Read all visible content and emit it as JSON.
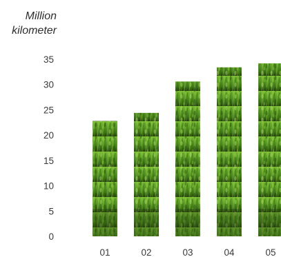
{
  "chart_data": {
    "type": "bar",
    "title": "",
    "ylabel": [
      "Million",
      "kilometer"
    ],
    "xlabel": "",
    "categories": [
      "01",
      "02",
      "03",
      "04",
      "05"
    ],
    "values": [
      22.8,
      24.4,
      30.6,
      33.4,
      34.2
    ],
    "ylim": [
      0,
      35
    ],
    "yticks": [
      0,
      5,
      10,
      15,
      20,
      25,
      30,
      35
    ],
    "grid": false,
    "legend": "none",
    "bar_fill": "green grass texture",
    "colors": {
      "grass_dark": "#1f3a0c",
      "grass_mid": "#4f8f1f",
      "grass_light": "#8ec83e",
      "text": "#3a3a3a"
    }
  }
}
